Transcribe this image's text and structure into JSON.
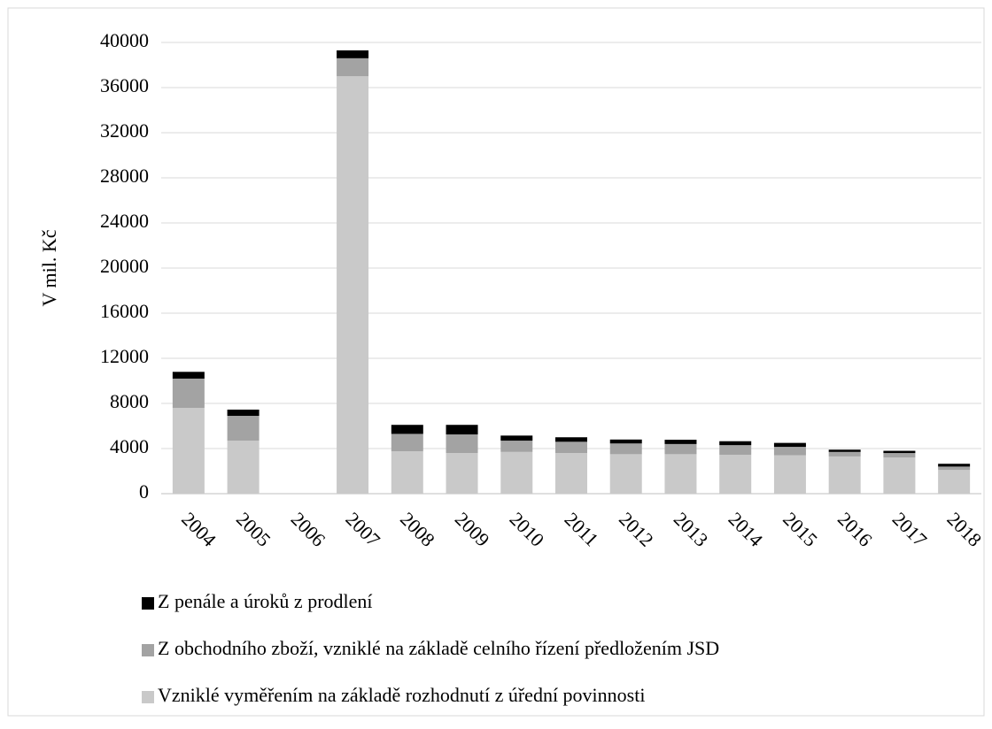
{
  "chart_data": {
    "type": "stacked_bar",
    "y_label": "V mil. Kč",
    "categories": [
      "2004",
      "2005",
      "2006",
      "2007",
      "2008",
      "2009",
      "2010",
      "2011",
      "2012",
      "2013",
      "2014",
      "2015",
      "2016",
      "2017",
      "2018"
    ],
    "series": [
      {
        "name": "Vzniklé vyměřením na základě rozhodnutí z úřední povinnosti",
        "color": "#c9c9c9",
        "values": [
          7600,
          4700,
          null,
          37000,
          3750,
          3600,
          3700,
          3600,
          3500,
          3500,
          3450,
          3400,
          3300,
          3200,
          2100
        ]
      },
      {
        "name": "Z obchodního zboží, vzniklé na základě celního řízení předložením JSD",
        "color": "#a3a3a3",
        "values": [
          2600,
          2200,
          null,
          1600,
          1550,
          1650,
          1000,
          1000,
          950,
          900,
          850,
          750,
          400,
          400,
          300
        ]
      },
      {
        "name": "Z penále a úroků z prodlení",
        "color": "#000000",
        "values": [
          600,
          550,
          null,
          700,
          800,
          850,
          450,
          400,
          350,
          380,
          350,
          350,
          200,
          200,
          250
        ]
      }
    ],
    "ylim": [
      0,
      40000
    ],
    "yticks": [
      0,
      4000,
      8000,
      12000,
      16000,
      20000,
      24000,
      28000,
      32000,
      36000,
      40000
    ],
    "grid": true
  }
}
